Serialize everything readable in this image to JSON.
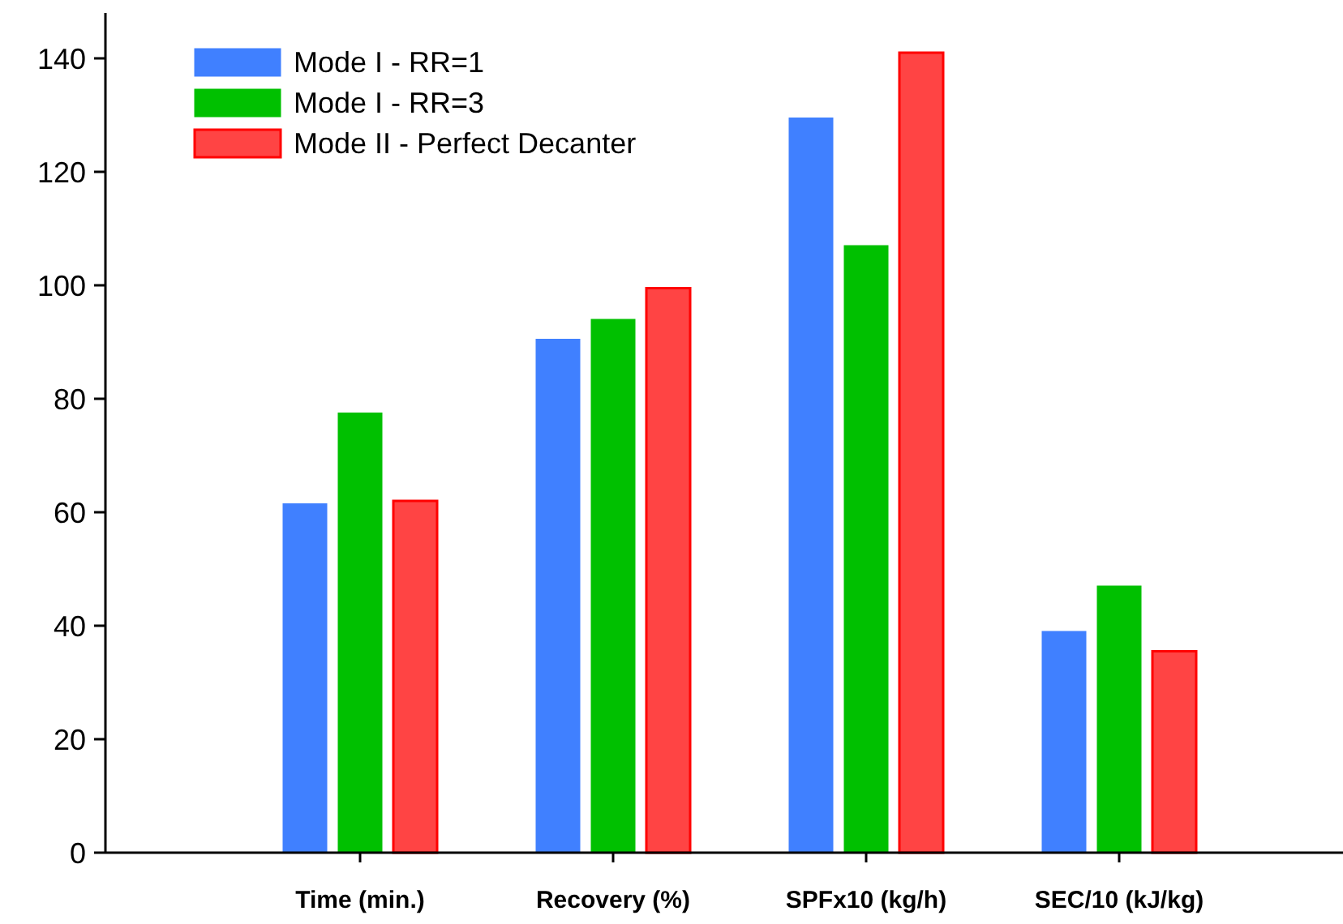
{
  "chart_data": {
    "type": "bar",
    "categories": [
      "Time (min.)",
      "Recovery (%)",
      "SPFx10 (kg/h)",
      "SEC/10 (kJ/kg)"
    ],
    "series": [
      {
        "name": "Mode I - RR=1",
        "color": "#4080ff",
        "values": [
          61.5,
          90.5,
          129.5,
          39
        ]
      },
      {
        "name": "Mode I - RR=3",
        "color": "#00c000",
        "values": [
          77.5,
          94,
          107,
          47
        ]
      },
      {
        "name": "Mode II  - Perfect Decanter",
        "color": "#ff4444",
        "values": [
          62,
          99.5,
          141,
          35.5
        ]
      }
    ],
    "ylim": [
      0,
      148
    ],
    "yticks": [
      0,
      20,
      40,
      60,
      80,
      100,
      120,
      140
    ],
    "grid": false,
    "legend": "top left"
  }
}
